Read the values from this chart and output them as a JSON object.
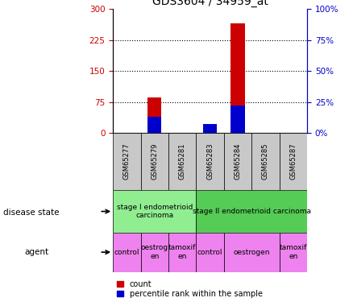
{
  "title": "GDS3604 / 34959_at",
  "samples": [
    "GSM65277",
    "GSM65279",
    "GSM65281",
    "GSM65283",
    "GSM65284",
    "GSM65285",
    "GSM65287"
  ],
  "count_values": [
    0,
    85,
    0,
    15,
    265,
    0,
    0
  ],
  "percentile_values": [
    0,
    13,
    0,
    7,
    22,
    0,
    0
  ],
  "ylim_left": [
    0,
    300
  ],
  "ylim_right": [
    0,
    100
  ],
  "yticks_left": [
    0,
    75,
    150,
    225,
    300
  ],
  "yticks_right": [
    0,
    25,
    50,
    75,
    100
  ],
  "disease_state_labels": [
    {
      "label": "stage I endometrioid\ncarcinoma",
      "start": 0,
      "end": 3,
      "color": "#90ee90"
    },
    {
      "label": "stage II endometrioid carcinoma",
      "start": 3,
      "end": 7,
      "color": "#55cc55"
    }
  ],
  "agent_labels": [
    {
      "label": "control",
      "start": 0,
      "end": 1,
      "color": "#ee82ee"
    },
    {
      "label": "oestrog\nen",
      "start": 1,
      "end": 2,
      "color": "#ee82ee"
    },
    {
      "label": "tamoxif\nen",
      "start": 2,
      "end": 3,
      "color": "#ee82ee"
    },
    {
      "label": "control",
      "start": 3,
      "end": 4,
      "color": "#ee82ee"
    },
    {
      "label": "oestrogen",
      "start": 4,
      "end": 6,
      "color": "#ee82ee"
    },
    {
      "label": "tamoxif\nen",
      "start": 6,
      "end": 7,
      "color": "#ee82ee"
    }
  ],
  "bar_color_count": "#cc0000",
  "bar_color_percentile": "#0000cc",
  "bar_width": 0.5,
  "tick_color_left": "#cc0000",
  "tick_color_right": "#0000cc",
  "sample_box_color": "#c8c8c8",
  "legend_count_label": "count",
  "legend_percentile_label": "percentile rank within the sample",
  "disease_state_text": "disease state",
  "agent_text": "agent"
}
